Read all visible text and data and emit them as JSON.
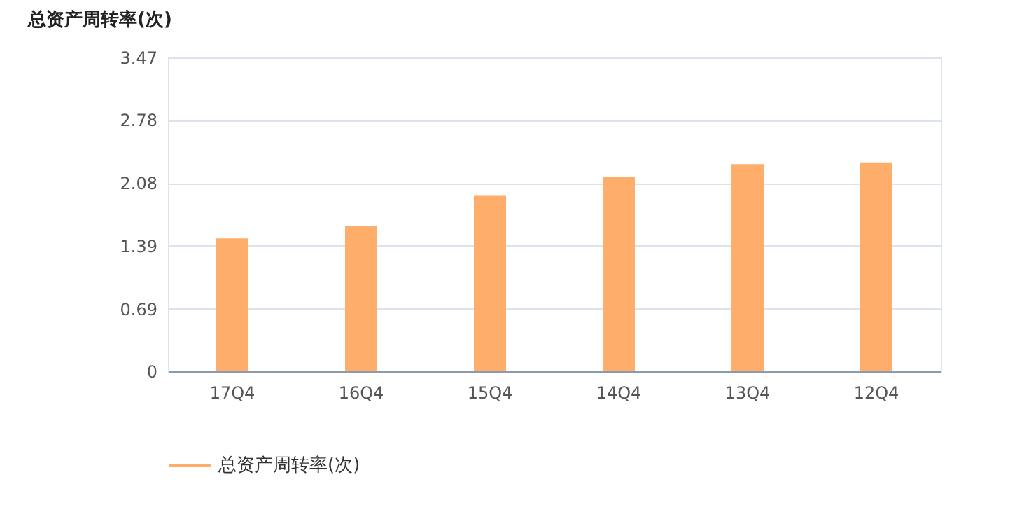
{
  "chart_data": {
    "type": "bar",
    "ylabel": "总资产周转率(次)",
    "categories": [
      "17Q4",
      "16Q4",
      "15Q4",
      "14Q4",
      "13Q4",
      "12Q4"
    ],
    "series": [
      {
        "name": "总资产周转率(次)",
        "color": "#ffad6a",
        "values": [
          1.47,
          1.61,
          1.94,
          2.15,
          2.29,
          2.31
        ]
      }
    ],
    "ylim": [
      0,
      3.47
    ],
    "yticks": [
      0,
      0.69,
      1.39,
      2.08,
      2.78,
      3.47
    ],
    "grid": "y",
    "legend": "bottom"
  }
}
